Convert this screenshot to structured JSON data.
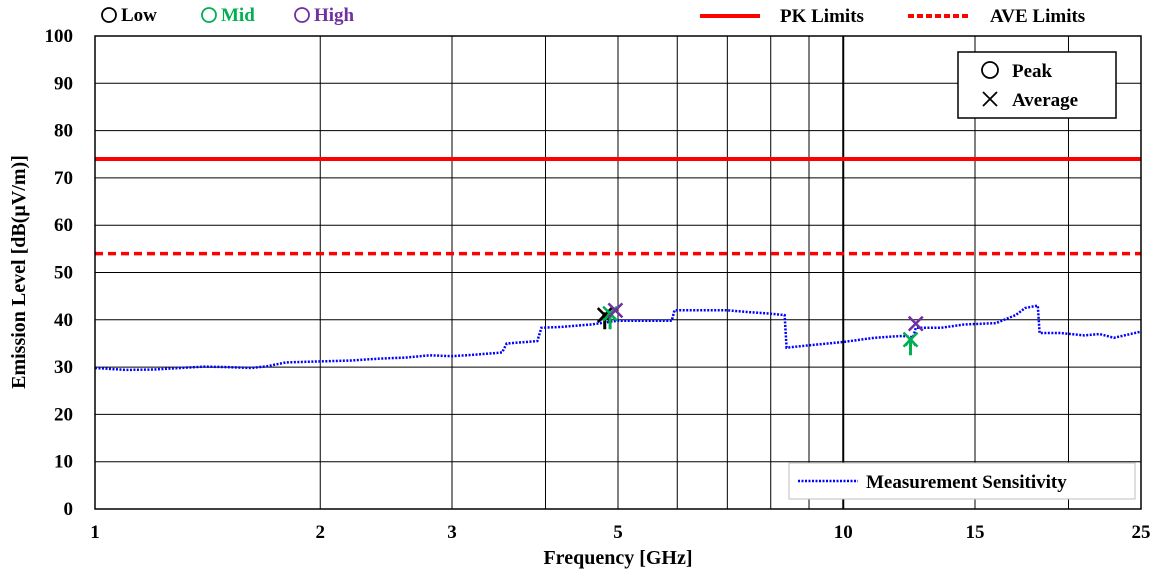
{
  "chart_data": {
    "type": "scatter",
    "title": "",
    "xlabel": "Frequency [GHz]",
    "ylabel": "Emission Level [dB(µV/m)]",
    "x_scale": "log",
    "xlim": [
      1,
      25
    ],
    "ylim": [
      0,
      100
    ],
    "grid": true,
    "x_ticks": [
      {
        "value": 1,
        "label": "1"
      },
      {
        "value": 2,
        "label": "2"
      },
      {
        "value": 3,
        "label": "3"
      },
      {
        "value": 5,
        "label": "5"
      },
      {
        "value": 10,
        "label": "10"
      },
      {
        "value": 15,
        "label": "15"
      },
      {
        "value": 25,
        "label": "25"
      }
    ],
    "y_ticks": [
      0,
      10,
      20,
      30,
      40,
      50,
      60,
      70,
      80,
      90,
      100
    ],
    "channel_legend": [
      {
        "label": "Low",
        "color": "#000000"
      },
      {
        "label": "Mid",
        "color": "#00b050"
      },
      {
        "label": "High",
        "color": "#7030a0"
      }
    ],
    "limit_legend": [
      {
        "label": "PK  Limits",
        "color": "#ff0000",
        "style": "solid"
      },
      {
        "label": "AVE  Limits",
        "color": "#ff0000",
        "style": "dashed"
      }
    ],
    "marker_legend": [
      {
        "label": "Peak",
        "marker": "circle"
      },
      {
        "label": "Average",
        "marker": "x"
      }
    ],
    "limits": {
      "pk": 74,
      "ave": 54
    },
    "sensitivity": {
      "name": "Measurement Sensitivity",
      "color": "#0000ff",
      "points": [
        [
          1.0,
          29.8
        ],
        [
          1.1,
          29.4
        ],
        [
          1.2,
          29.5
        ],
        [
          1.3,
          29.8
        ],
        [
          1.4,
          30.1
        ],
        [
          1.5,
          30.0
        ],
        [
          1.62,
          29.8
        ],
        [
          1.7,
          30.2
        ],
        [
          1.8,
          31.0
        ],
        [
          2.0,
          31.2
        ],
        [
          2.2,
          31.4
        ],
        [
          2.4,
          31.8
        ],
        [
          2.6,
          32.0
        ],
        [
          2.8,
          32.5
        ],
        [
          3.0,
          32.3
        ],
        [
          3.2,
          32.6
        ],
        [
          3.45,
          33.0
        ],
        [
          3.5,
          33.1
        ],
        [
          3.55,
          35.0
        ],
        [
          3.9,
          35.5
        ],
        [
          3.95,
          38.3
        ],
        [
          4.2,
          38.5
        ],
        [
          4.6,
          39.0
        ],
        [
          5.0,
          39.8
        ],
        [
          5.5,
          39.8
        ],
        [
          5.9,
          39.8
        ],
        [
          5.95,
          42.0
        ],
        [
          6.5,
          42.0
        ],
        [
          7.0,
          42.0
        ],
        [
          7.5,
          41.6
        ],
        [
          8.0,
          41.3
        ],
        [
          8.35,
          41.0
        ],
        [
          8.4,
          34.1
        ],
        [
          9.0,
          34.6
        ],
        [
          10.0,
          35.3
        ],
        [
          11.0,
          36.2
        ],
        [
          12.0,
          36.6
        ],
        [
          12.4,
          36.3
        ],
        [
          12.5,
          38.3
        ],
        [
          13.5,
          38.3
        ],
        [
          14.5,
          39.0
        ],
        [
          16.0,
          39.3
        ],
        [
          17.0,
          41.0
        ],
        [
          17.5,
          42.5
        ],
        [
          18.2,
          43.0
        ],
        [
          18.3,
          37.2
        ],
        [
          19.5,
          37.2
        ],
        [
          21.0,
          36.7
        ],
        [
          22.0,
          37.0
        ],
        [
          23.0,
          36.2
        ],
        [
          25.0,
          37.5
        ]
      ]
    },
    "series": [
      {
        "channel": "Low",
        "color": "#000000",
        "peak": [],
        "average": [
          [
            4.8,
            41.0
          ]
        ],
        "arrows": [
          [
            4.8,
            38.0,
            41.0
          ]
        ]
      },
      {
        "channel": "Mid",
        "color": "#00b050",
        "peak": [],
        "average": [
          [
            4.88,
            41.3
          ],
          [
            12.3,
            35.8
          ]
        ],
        "arrows": [
          [
            4.88,
            38.0,
            41.3
          ],
          [
            12.3,
            32.5,
            35.8
          ]
        ]
      },
      {
        "channel": "High",
        "color": "#7030a0",
        "peak": [],
        "average": [
          [
            4.96,
            42.0
          ],
          [
            12.5,
            39.2
          ]
        ],
        "arrows": []
      }
    ]
  }
}
